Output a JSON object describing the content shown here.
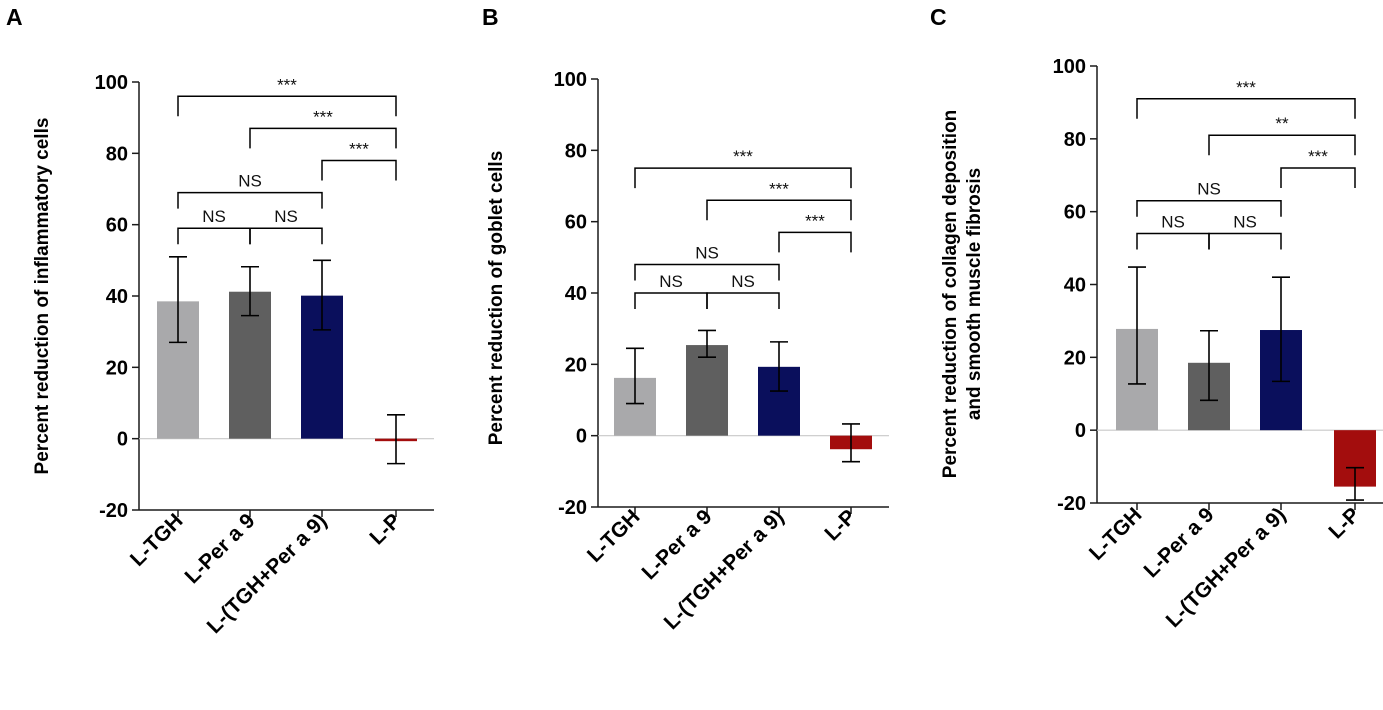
{
  "colors": {
    "L-TGH": "#a9a9ab",
    "L-Per a 9": "#5f5f5f",
    "L-(TGH+Per a 9)": "#0a0f5c",
    "L-P": "#a30d0d",
    "axis": "#1a1a1a",
    "zero_line": "#c8c8c8"
  },
  "chart_data": [
    {
      "panel": "A",
      "type": "bar",
      "categories": [
        "L-TGH",
        "L-Per a 9",
        "L-(TGH+Per a 9)",
        "L-P"
      ],
      "values": [
        38.5,
        41.2,
        40.1,
        -0.5
      ],
      "err_low": [
        27,
        34.5,
        30.5,
        -7
      ],
      "err_high": [
        51,
        48.2,
        50,
        6.7
      ],
      "ylabel": [
        "Percent reduction of inflammatory cells"
      ],
      "ylim": [
        -20,
        100
      ],
      "yticks": [
        -20,
        0,
        20,
        40,
        60,
        80,
        100
      ],
      "brackets": [
        {
          "from": 0,
          "to": 3,
          "y": 96,
          "label": "***"
        },
        {
          "from": 1,
          "to": 3,
          "y": 87,
          "label": "***"
        },
        {
          "from": 2,
          "to": 3,
          "y": 78,
          "label": "***"
        },
        {
          "from": 0,
          "to": 2,
          "y": 69,
          "label": "NS"
        },
        {
          "from": 0,
          "to": 1,
          "y": 59,
          "label": "NS"
        },
        {
          "from": 1,
          "to": 2,
          "y": 59,
          "label": "NS"
        }
      ]
    },
    {
      "panel": "B",
      "type": "bar",
      "categories": [
        "L-TGH",
        "L-Per a 9",
        "L-(TGH+Per a 9)",
        "L-P"
      ],
      "values": [
        16.2,
        25.4,
        19.3,
        -3.8
      ],
      "err_low": [
        9,
        22,
        12.5,
        -7.3
      ],
      "err_high": [
        24.5,
        29.5,
        26.3,
        3.3
      ],
      "ylabel": [
        "Percent reduction of goblet cells"
      ],
      "ylim": [
        -20,
        100
      ],
      "yticks": [
        -20,
        0,
        20,
        40,
        60,
        80,
        100
      ],
      "brackets": [
        {
          "from": 0,
          "to": 3,
          "y": 75,
          "label": "***"
        },
        {
          "from": 1,
          "to": 3,
          "y": 66,
          "label": "***"
        },
        {
          "from": 2,
          "to": 3,
          "y": 57,
          "label": "***"
        },
        {
          "from": 0,
          "to": 2,
          "y": 48,
          "label": "NS"
        },
        {
          "from": 0,
          "to": 1,
          "y": 40,
          "label": "NS"
        },
        {
          "from": 1,
          "to": 2,
          "y": 40,
          "label": "NS"
        }
      ]
    },
    {
      "panel": "C",
      "type": "bar",
      "categories": [
        "L-TGH",
        "L-Per a 9",
        "L-(TGH+Per a 9)",
        "L-P"
      ],
      "values": [
        27.8,
        18.5,
        27.5,
        -15.5
      ],
      "err_low": [
        12.7,
        8.2,
        13.4,
        -19.2
      ],
      "err_high": [
        44.8,
        27.3,
        42,
        -10.3
      ],
      "ylabel": [
        "Percent reduction of collagen deposition",
        "and smooth muscle fibrosis"
      ],
      "ylim": [
        -20,
        100
      ],
      "yticks": [
        -20,
        0,
        20,
        40,
        60,
        80,
        100
      ],
      "brackets": [
        {
          "from": 0,
          "to": 3,
          "y": 91,
          "label": "***"
        },
        {
          "from": 1,
          "to": 3,
          "y": 81,
          "label": "**"
        },
        {
          "from": 2,
          "to": 3,
          "y": 72,
          "label": "***"
        },
        {
          "from": 0,
          "to": 2,
          "y": 63,
          "label": "NS"
        },
        {
          "from": 0,
          "to": 1,
          "y": 54,
          "label": "NS"
        },
        {
          "from": 1,
          "to": 2,
          "y": 54,
          "label": "NS"
        }
      ]
    }
  ]
}
